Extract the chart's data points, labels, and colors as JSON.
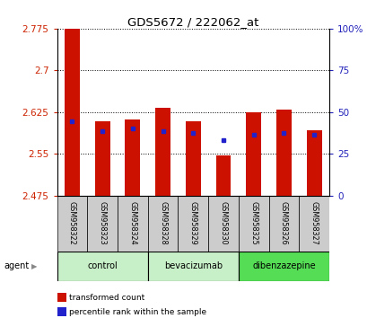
{
  "title": "GDS5672 / 222062_at",
  "samples": [
    "GSM958322",
    "GSM958323",
    "GSM958324",
    "GSM958328",
    "GSM958329",
    "GSM958330",
    "GSM958325",
    "GSM958326",
    "GSM958327"
  ],
  "red_values": [
    2.775,
    2.608,
    2.612,
    2.633,
    2.608,
    2.547,
    2.625,
    2.63,
    2.593
  ],
  "blue_values": [
    2.608,
    2.591,
    2.596,
    2.591,
    2.588,
    2.574,
    2.584,
    2.587,
    2.585
  ],
  "ymin": 2.475,
  "ymax": 2.775,
  "yticks": [
    2.475,
    2.55,
    2.625,
    2.7,
    2.775
  ],
  "ytick_labels": [
    "2.475",
    "2.55",
    "2.625",
    "2.7",
    "2.775"
  ],
  "y2min": 0,
  "y2max": 100,
  "y2ticks": [
    0,
    25,
    50,
    75,
    100
  ],
  "y2tick_labels": [
    "0",
    "25",
    "50",
    "75",
    "100%"
  ],
  "bar_color": "#cc1100",
  "dot_color": "#2222cc",
  "bar_width": 0.5,
  "background_color": "#ffffff",
  "tick_label_color_left": "#cc2200",
  "tick_label_color_right": "#2222bb",
  "sample_cell_color": "#cccccc",
  "group_info": [
    {
      "label": "control",
      "start": 0,
      "end": 2,
      "color": "#c8f0c8"
    },
    {
      "label": "bevacizumab",
      "start": 3,
      "end": 5,
      "color": "#c8f0c8"
    },
    {
      "label": "dibenzazepine",
      "start": 6,
      "end": 8,
      "color": "#55dd55"
    }
  ],
  "legend_items": [
    {
      "label": "transformed count",
      "color": "#cc1100"
    },
    {
      "label": "percentile rank within the sample",
      "color": "#2222cc"
    }
  ]
}
